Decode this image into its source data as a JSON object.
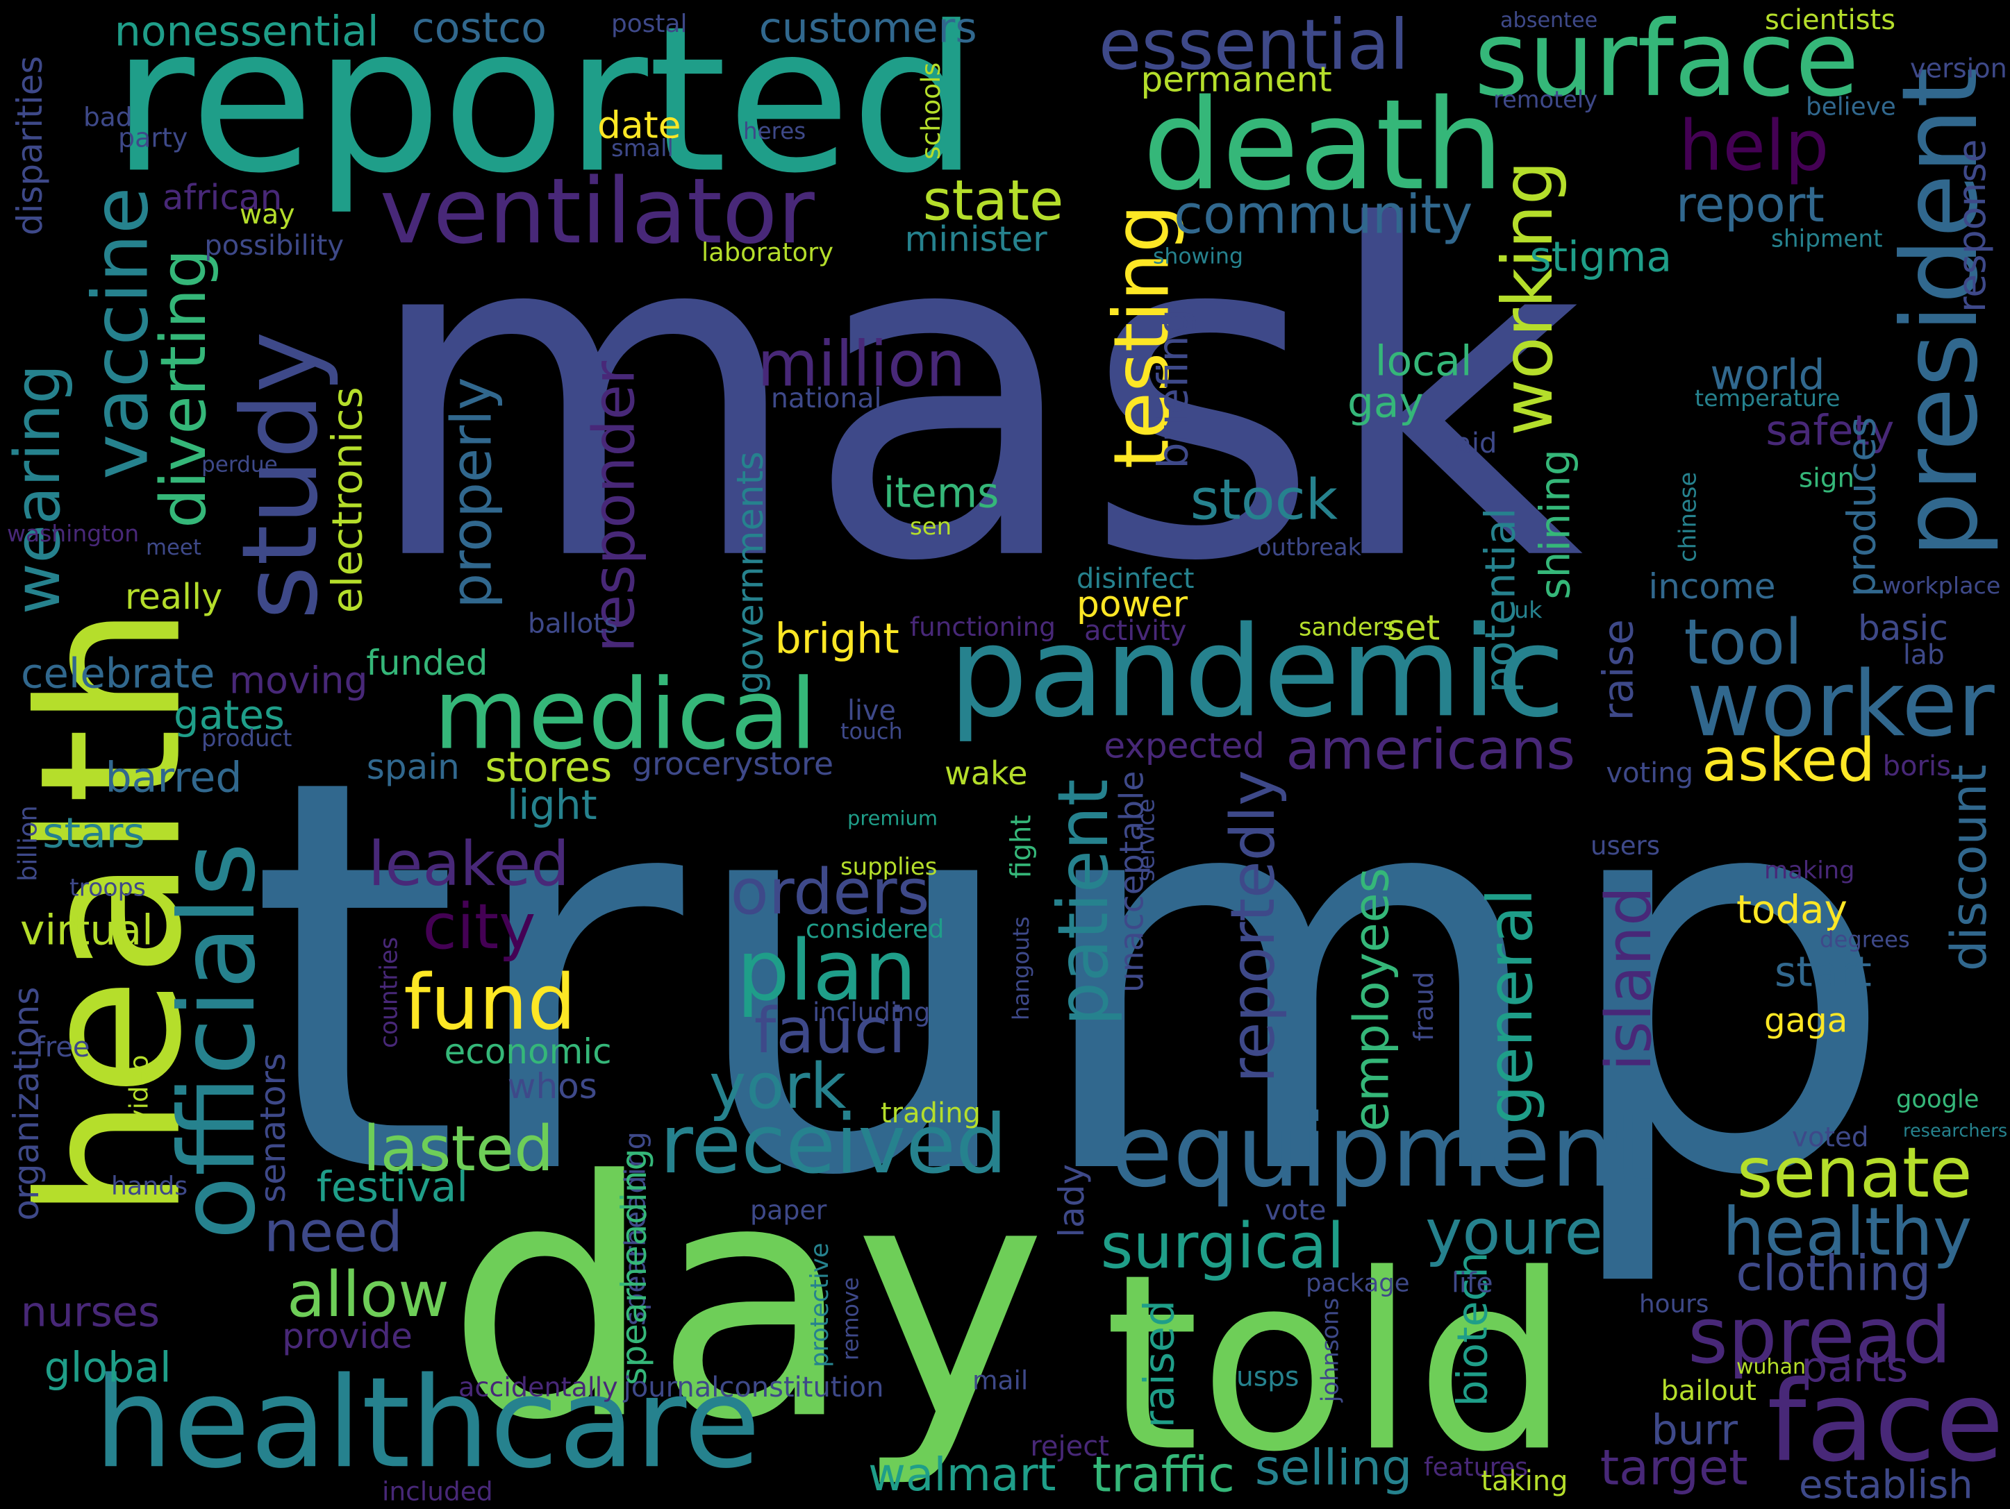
{
  "palette": {
    "background": "#000000",
    "purple_dark": "#440154",
    "purple": "#482878",
    "indigo": "#3e4989",
    "blue": "#31688e",
    "teal_blue": "#26828e",
    "teal": "#1f9e89",
    "green_teal": "#35b779",
    "green": "#6ece58",
    "yellow_green": "#b5de2b",
    "yellow": "#fde725"
  },
  "words": [
    {
      "text": "mask",
      "color": "#3e4989"
    },
    {
      "text": "trump",
      "color": "#31688e"
    },
    {
      "text": "day",
      "color": "#6ece58"
    },
    {
      "text": "told",
      "color": "#6ece58"
    },
    {
      "text": "health",
      "color": "#b5de2b"
    },
    {
      "text": "reported",
      "color": "#1f9e89"
    },
    {
      "text": "death",
      "color": "#35b779"
    },
    {
      "text": "pandemic",
      "color": "#26828e"
    },
    {
      "text": "healthcare",
      "color": "#26828e"
    },
    {
      "text": "president",
      "color": "#31688e"
    },
    {
      "text": "equipment",
      "color": "#31688e"
    },
    {
      "text": "officials",
      "color": "#26828e"
    },
    {
      "text": "surface",
      "color": "#35b779"
    },
    {
      "text": "essential",
      "color": "#3e4989"
    },
    {
      "text": "ventilator",
      "color": "#482878"
    },
    {
      "text": "medical",
      "color": "#35b779"
    },
    {
      "text": "study",
      "color": "#3e4989"
    },
    {
      "text": "face",
      "color": "#482878"
    },
    {
      "text": "worker",
      "color": "#31688e"
    },
    {
      "text": "received",
      "color": "#26828e"
    },
    {
      "text": "testing",
      "color": "#fde725"
    },
    {
      "text": "vaccine",
      "color": "#26828e"
    },
    {
      "text": "fund",
      "color": "#fde725"
    },
    {
      "text": "plan",
      "color": "#1f9e89"
    },
    {
      "text": "patient",
      "color": "#26828e"
    },
    {
      "text": "spread",
      "color": "#482878"
    },
    {
      "text": "million",
      "color": "#482878"
    },
    {
      "text": "working",
      "color": "#b5de2b"
    },
    {
      "text": "community",
      "color": "#31688e"
    },
    {
      "text": "senate",
      "color": "#b5de2b"
    },
    {
      "text": "healthy",
      "color": "#31688e"
    },
    {
      "text": "help",
      "color": "#440154"
    },
    {
      "text": "report",
      "color": "#31688e"
    },
    {
      "text": "stock",
      "color": "#26828e"
    },
    {
      "text": "diverting",
      "color": "#35b779"
    },
    {
      "text": "reportedly",
      "color": "#3e4989"
    },
    {
      "text": "wearing",
      "color": "#26828e"
    },
    {
      "text": "americans",
      "color": "#482878"
    },
    {
      "text": "island",
      "color": "#482878"
    },
    {
      "text": "general",
      "color": "#1f9e89"
    },
    {
      "text": "responder",
      "color": "#482878"
    },
    {
      "text": "orders",
      "color": "#3e4989"
    },
    {
      "text": "york",
      "color": "#26828e"
    },
    {
      "text": "fauci",
      "color": "#3e4989"
    },
    {
      "text": "city",
      "color": "#440154"
    },
    {
      "text": "leaked",
      "color": "#482878"
    },
    {
      "text": "properly",
      "color": "#31688e"
    },
    {
      "text": "employees",
      "color": "#35b779"
    },
    {
      "text": "surgical",
      "color": "#1f9e89"
    },
    {
      "text": "youre",
      "color": "#26828e"
    },
    {
      "text": "allow",
      "color": "#6ece58"
    },
    {
      "text": "need",
      "color": "#3e4989"
    },
    {
      "text": "lasted",
      "color": "#6ece58"
    },
    {
      "text": "discount",
      "color": "#31688e"
    },
    {
      "text": "tool",
      "color": "#31688e"
    },
    {
      "text": "asked",
      "color": "#fde725"
    },
    {
      "text": "state",
      "color": "#b5de2b"
    },
    {
      "text": "electronics",
      "color": "#b5de2b"
    },
    {
      "text": "governments",
      "color": "#26828e"
    },
    {
      "text": "clothing",
      "color": "#3e4989"
    },
    {
      "text": "parts",
      "color": "#482878"
    },
    {
      "text": "target",
      "color": "#482878"
    },
    {
      "text": "selling",
      "color": "#26828e"
    },
    {
      "text": "traffic",
      "color": "#35b779"
    },
    {
      "text": "walmart",
      "color": "#1f9e89"
    },
    {
      "text": "establish",
      "color": "#3e4989"
    },
    {
      "text": "burr",
      "color": "#3e4989"
    },
    {
      "text": "items",
      "color": "#35b779"
    },
    {
      "text": "local",
      "color": "#35b779"
    },
    {
      "text": "customers",
      "color": "#31688e"
    },
    {
      "text": "costco",
      "color": "#31688e"
    },
    {
      "text": "nonessential",
      "color": "#1f9e89"
    },
    {
      "text": "stigma",
      "color": "#1f9e89"
    },
    {
      "text": "minister",
      "color": "#26828e"
    },
    {
      "text": "permanent",
      "color": "#b5de2b"
    },
    {
      "text": "date",
      "color": "#fde725"
    },
    {
      "text": "really",
      "color": "#b5de2b"
    },
    {
      "text": "celebrate",
      "color": "#31688e"
    },
    {
      "text": "moving",
      "color": "#482878"
    },
    {
      "text": "funded",
      "color": "#35b779"
    },
    {
      "text": "gates",
      "color": "#1f9e89"
    },
    {
      "text": "barred",
      "color": "#31688e"
    },
    {
      "text": "stars",
      "color": "#26828e"
    },
    {
      "text": "virtual",
      "color": "#b5de2b"
    },
    {
      "text": "nurses",
      "color": "#482878"
    },
    {
      "text": "provide",
      "color": "#482878"
    },
    {
      "text": "global",
      "color": "#1f9e89"
    },
    {
      "text": "festival",
      "color": "#1f9e89"
    },
    {
      "text": "economic",
      "color": "#35b779"
    },
    {
      "text": "whos",
      "color": "#3e4989"
    },
    {
      "text": "spain",
      "color": "#31688e"
    },
    {
      "text": "stores",
      "color": "#b5de2b"
    },
    {
      "text": "grocerystore",
      "color": "#3e4989"
    },
    {
      "text": "light",
      "color": "#26828e"
    },
    {
      "text": "wake",
      "color": "#b5de2b"
    },
    {
      "text": "power",
      "color": "#fde725"
    },
    {
      "text": "set",
      "color": "#b5de2b"
    },
    {
      "text": "bright",
      "color": "#fde725"
    },
    {
      "text": "potential",
      "color": "#26828e"
    },
    {
      "text": "shining",
      "color": "#35b779"
    },
    {
      "text": "raise",
      "color": "#3e4989"
    },
    {
      "text": "income",
      "color": "#31688e"
    },
    {
      "text": "basic",
      "color": "#3e4989"
    },
    {
      "text": "world",
      "color": "#31688e"
    },
    {
      "text": "safety",
      "color": "#482878"
    },
    {
      "text": "produces",
      "color": "#31688e"
    },
    {
      "text": "response",
      "color": "#3e4989"
    },
    {
      "text": "today",
      "color": "#fde725"
    },
    {
      "text": "start",
      "color": "#31688e"
    },
    {
      "text": "gaga",
      "color": "#fde725"
    },
    {
      "text": "unacceptable",
      "color": "#3e4989"
    },
    {
      "text": "expected",
      "color": "#482878"
    },
    {
      "text": "briefing",
      "color": "#3e4989"
    },
    {
      "text": "gay",
      "color": "#35b779"
    },
    {
      "text": "african",
      "color": "#482878"
    },
    {
      "text": "disparities",
      "color": "#3e4989"
    },
    {
      "text": "organizations",
      "color": "#3e4989"
    },
    {
      "text": "senators",
      "color": "#3e4989"
    },
    {
      "text": "biotech",
      "color": "#1f9e89"
    },
    {
      "text": "raised",
      "color": "#1f9e89"
    },
    {
      "text": "lady",
      "color": "#3e4989"
    },
    {
      "text": "spearheading",
      "color": "#3e4989"
    },
    {
      "text": "spearheading",
      "color": "#35b779"
    },
    {
      "text": "journalconstitution",
      "color": "#3e4989"
    },
    {
      "text": "accidentally",
      "color": "#482878"
    },
    {
      "text": "included",
      "color": "#482878"
    },
    {
      "text": "postal",
      "color": "#3e4989"
    },
    {
      "text": "absentee",
      "color": "#3e4989"
    },
    {
      "text": "scientists",
      "color": "#b5de2b"
    },
    {
      "text": "version",
      "color": "#3e4989"
    },
    {
      "text": "remotely",
      "color": "#3e4989"
    },
    {
      "text": "believe",
      "color": "#31688e"
    },
    {
      "text": "bad",
      "color": "#3e4989"
    },
    {
      "text": "party",
      "color": "#3e4989"
    },
    {
      "text": "small",
      "color": "#3e4989"
    },
    {
      "text": "heres",
      "color": "#3e4989"
    },
    {
      "text": "schools",
      "color": "#b5de2b"
    },
    {
      "text": "way",
      "color": "#b5de2b"
    },
    {
      "text": "possibility",
      "color": "#3e4989"
    },
    {
      "text": "laboratory",
      "color": "#b5de2b"
    },
    {
      "text": "showing",
      "color": "#26828e"
    },
    {
      "text": "shipment",
      "color": "#26828e"
    },
    {
      "text": "national",
      "color": "#3e4989"
    },
    {
      "text": "temperature",
      "color": "#26828e"
    },
    {
      "text": "perdue",
      "color": "#3e4989"
    },
    {
      "text": "aid",
      "color": "#3e4989"
    },
    {
      "text": "sign",
      "color": "#35b779"
    },
    {
      "text": "washington",
      "color": "#482878"
    },
    {
      "text": "meet",
      "color": "#3e4989"
    },
    {
      "text": "sen",
      "color": "#b5de2b"
    },
    {
      "text": "outbreak",
      "color": "#3e4989"
    },
    {
      "text": "chinese",
      "color": "#26828e"
    },
    {
      "text": "disinfect",
      "color": "#26828e"
    },
    {
      "text": "workplace",
      "color": "#3e4989"
    },
    {
      "text": "ballots",
      "color": "#3e4989"
    },
    {
      "text": "functioning",
      "color": "#482878"
    },
    {
      "text": "activity",
      "color": "#482878"
    },
    {
      "text": "sanders",
      "color": "#b5de2b"
    },
    {
      "text": "uk",
      "color": "#26828e"
    },
    {
      "text": "lab",
      "color": "#3e4989"
    },
    {
      "text": "live",
      "color": "#3e4989"
    },
    {
      "text": "touch",
      "color": "#3e4989"
    },
    {
      "text": "product",
      "color": "#3e4989"
    },
    {
      "text": "voting",
      "color": "#3e4989"
    },
    {
      "text": "boris",
      "color": "#482878"
    },
    {
      "text": "billion",
      "color": "#3e4989"
    },
    {
      "text": "premium",
      "color": "#1f9e89"
    },
    {
      "text": "troops",
      "color": "#3e4989"
    },
    {
      "text": "supplies",
      "color": "#b5de2b"
    },
    {
      "text": "fight",
      "color": "#35b779"
    },
    {
      "text": "service",
      "color": "#3e4989"
    },
    {
      "text": "users",
      "color": "#3e4989"
    },
    {
      "text": "making",
      "color": "#482878"
    },
    {
      "text": "considered",
      "color": "#1f9e89"
    },
    {
      "text": "degrees",
      "color": "#3e4989"
    },
    {
      "text": "hangouts",
      "color": "#3e4989"
    },
    {
      "text": "countries",
      "color": "#482878"
    },
    {
      "text": "including",
      "color": "#3e4989"
    },
    {
      "text": "fraud",
      "color": "#3e4989"
    },
    {
      "text": "free",
      "color": "#3e4989"
    },
    {
      "text": "video",
      "color": "#b5de2b"
    },
    {
      "text": "google",
      "color": "#35b779"
    },
    {
      "text": "trading",
      "color": "#b5de2b"
    },
    {
      "text": "researchers",
      "color": "#26828e"
    },
    {
      "text": "voted",
      "color": "#3e4989"
    },
    {
      "text": "hands",
      "color": "#3e4989"
    },
    {
      "text": "paper",
      "color": "#3e4989"
    },
    {
      "text": "vote",
      "color": "#3e4989"
    },
    {
      "text": "package",
      "color": "#3e4989"
    },
    {
      "text": "life",
      "color": "#3e4989"
    },
    {
      "text": "protective",
      "color": "#26828e"
    },
    {
      "text": "remove",
      "color": "#3e4989"
    },
    {
      "text": "johnsons",
      "color": "#3e4989"
    },
    {
      "text": "hours",
      "color": "#3e4989"
    },
    {
      "text": "mail",
      "color": "#3e4989"
    },
    {
      "text": "usps",
      "color": "#26828e"
    },
    {
      "text": "wuhan",
      "color": "#b5de2b"
    },
    {
      "text": "bailout",
      "color": "#b5de2b"
    },
    {
      "text": "reject",
      "color": "#482878"
    },
    {
      "text": "features",
      "color": "#482878"
    },
    {
      "text": "taking",
      "color": "#b5de2b"
    }
  ]
}
